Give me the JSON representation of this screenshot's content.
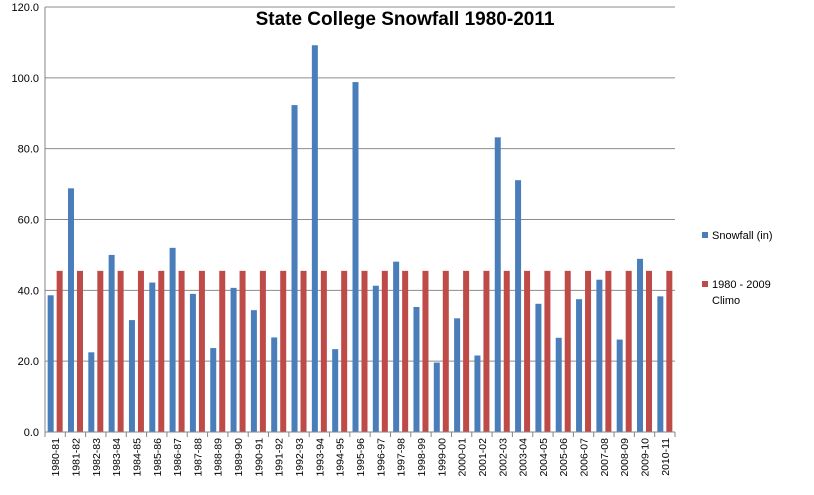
{
  "chart_data": {
    "type": "bar",
    "title": "State College Snowfall 1980-2011",
    "xlabel": "",
    "ylabel": "",
    "ylim": [
      0,
      120
    ],
    "yticks": [
      "0.0",
      "20.0",
      "40.0",
      "60.0",
      "80.0",
      "100.0",
      "120.0"
    ],
    "grid": true,
    "legend_position": "right",
    "categories": [
      "1980-81",
      "1981-82",
      "1982-83",
      "1983-84",
      "1984-85",
      "1985-86",
      "1986-87",
      "1987-88",
      "1988-89",
      "1989-90",
      "1990-91",
      "1991-92",
      "1992-93",
      "1993-94",
      "1994-95",
      "1995-96",
      "1996-97",
      "1997-98",
      "1998-99",
      "1999-00",
      "2000-01",
      "2001-02",
      "2002-03",
      "2003-04",
      "2004-05",
      "2005-06",
      "2006-07",
      "2007-08",
      "2008-09",
      "2009-10",
      "2010-11"
    ],
    "series": [
      {
        "name": "Snowfall (in)",
        "color": "#4a7ebb",
        "values": [
          38.6,
          68.8,
          22.5,
          50.0,
          31.6,
          42.2,
          52.0,
          39.0,
          23.7,
          40.7,
          34.4,
          26.7,
          92.3,
          109.2,
          23.4,
          98.8,
          41.3,
          48.1,
          35.3,
          19.6,
          32.1,
          21.6,
          83.2,
          71.1,
          36.2,
          26.6,
          37.5,
          43.0,
          26.1,
          48.9,
          38.3
        ]
      },
      {
        "name": "1980 - 2009 Climo",
        "color": "#be4b48",
        "values": [
          45.5,
          45.5,
          45.5,
          45.5,
          45.5,
          45.5,
          45.5,
          45.5,
          45.5,
          45.5,
          45.5,
          45.5,
          45.5,
          45.5,
          45.5,
          45.5,
          45.5,
          45.5,
          45.5,
          45.5,
          45.5,
          45.5,
          45.5,
          45.5,
          45.5,
          45.5,
          45.5,
          45.5,
          45.5,
          45.5,
          45.5
        ]
      }
    ]
  }
}
